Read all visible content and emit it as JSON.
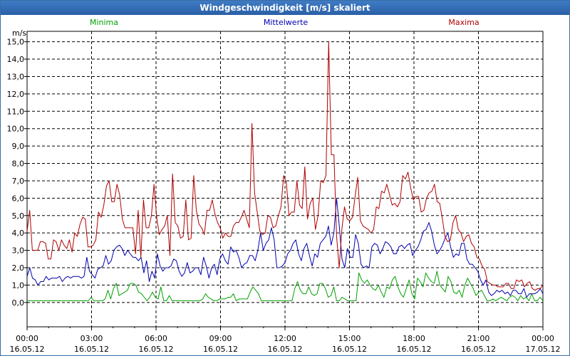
{
  "window": {
    "title": "Windgeschwindigkeit [m/s] skaliert"
  },
  "chart_data": {
    "type": "line",
    "title": "Windgeschwindigkeit [m/s] skaliert",
    "ylabel": "m/s",
    "ylim": [
      -1.4,
      15.6
    ],
    "xlim": [
      0,
      24
    ],
    "grid": true,
    "legend_position": "top",
    "y_ticks": [
      "0,0",
      "1,0",
      "2,0",
      "3,0",
      "4,0",
      "5,0",
      "6,0",
      "7,0",
      "8,0",
      "9,0",
      "10,0",
      "11,0",
      "12,0",
      "13,0",
      "14,0",
      "15,0"
    ],
    "x_tick_times": [
      "00:00",
      "03:00",
      "06:00",
      "09:00",
      "12:00",
      "15:00",
      "18:00",
      "21:00",
      "00:00"
    ],
    "x_tick_dates": [
      "16.05.12",
      "16.05.12",
      "16.05.12",
      "16.05.12",
      "16.05.12",
      "16.05.12",
      "16.05.12",
      "16.05.12",
      "17.05.12"
    ],
    "series": [
      {
        "name": "Minima",
        "color": "#00a000",
        "values": [
          0.1,
          0.1,
          0.1,
          0.1,
          0.1,
          0.1,
          0.1,
          0.1,
          0.1,
          0.1,
          0.1,
          0.1,
          0.1,
          0.1,
          0.1,
          0.1,
          0.1,
          0.1,
          0.1,
          0.1,
          0.1,
          0.1,
          0.1,
          0.3,
          0.1,
          0.1,
          0.1,
          0.1,
          0.2,
          0.7,
          0.2,
          0.8,
          1.1,
          0.4,
          0.5,
          0.6,
          0.7,
          1.1,
          1.1,
          1.0,
          0.6,
          0.5,
          0.3,
          0.1,
          0.3,
          0.6,
          0.3,
          0.2,
          0.9,
          0.1,
          0.1,
          0.4,
          0.1,
          0.1,
          0.1,
          0.1,
          0.1,
          0.1,
          0.1,
          0.1,
          0.1,
          0.1,
          0.1,
          0.2,
          0.5,
          0.3,
          0.2,
          0.1,
          0.1,
          0.2,
          0.2,
          0.2,
          0.3,
          0.3,
          0.5,
          0.1,
          0.2,
          0.2,
          0.2,
          0.2,
          0.6,
          0.9,
          0.7,
          0.5,
          0.1,
          0.1,
          0.1,
          0.1,
          0.1,
          0.1,
          0.1,
          0.1,
          0.1,
          0.1,
          0.1,
          0.1,
          0.8,
          1.2,
          0.7,
          0.5,
          0.5,
          0.9,
          0.5,
          0.4,
          0.5,
          1.1,
          1.1,
          0.8,
          0.3,
          0.4,
          0.9,
          0.1,
          0.1,
          0.3,
          0.2,
          0.1,
          0.1,
          0.1,
          0.1,
          1.7,
          1.3,
          1.1,
          1.3,
          1.0,
          0.8,
          0.7,
          1.0,
          0.6,
          0.3,
          0.9,
          0.8,
          1.3,
          1.5,
          0.9,
          0.5,
          0.3,
          0.8,
          1.3,
          0.5,
          0.2,
          1.4,
          1.2,
          0.9,
          1.7,
          1.4,
          1.2,
          1.1,
          1.8,
          1.0,
          0.8,
          0.6,
          1.5,
          1.2,
          0.6,
          0.5,
          0.7,
          0.3,
          1.0,
          1.4,
          1.1,
          0.8,
          0.4,
          0.6,
          0.7,
          0.4,
          0.1,
          0.1,
          0.2,
          0.1,
          0.2,
          0.3,
          0.2,
          0.1,
          0.3,
          0.4,
          0.3,
          0.1,
          0.4,
          0.2,
          0.3,
          0.1,
          0.5,
          0.1,
          0.1,
          0.3,
          0.1
        ]
      },
      {
        "name": "Mittelwerte",
        "color": "#0000b0",
        "values": [
          1.5,
          2.0,
          1.4,
          1.3,
          1.0,
          1.2,
          1.2,
          1.5,
          1.3,
          1.4,
          1.4,
          1.4,
          1.5,
          1.2,
          1.4,
          1.5,
          1.4,
          1.5,
          1.5,
          1.5,
          1.4,
          1.5,
          2.6,
          1.8,
          1.6,
          1.4,
          1.9,
          2.0,
          2.1,
          2.7,
          2.2,
          2.4,
          3.0,
          3.2,
          3.3,
          3.1,
          2.7,
          3.0,
          2.8,
          2.6,
          2.6,
          2.4,
          2.6,
          1.7,
          2.4,
          1.2,
          1.8,
          1.4,
          2.8,
          2.1,
          1.8,
          2.0,
          2.0,
          2.1,
          2.5,
          2.4,
          1.8,
          1.5,
          1.7,
          2.3,
          1.7,
          1.8,
          2.0,
          2.0,
          1.6,
          2.6,
          2.1,
          1.4,
          2.0,
          2.2,
          1.6,
          2.5,
          2.8,
          2.4,
          2.2,
          3.2,
          2.9,
          3.0,
          2.6,
          2.0,
          2.2,
          2.3,
          2.7,
          2.7,
          2.4,
          3.0,
          4.0,
          3.0,
          3.4,
          3.6,
          4.3,
          3.6,
          2.0,
          2.0,
          2.1,
          2.3,
          2.8,
          3.0,
          3.4,
          3.6,
          2.8,
          2.4,
          3.1,
          3.4,
          2.7,
          2.1,
          2.8,
          2.6,
          3.4,
          3.6,
          3.8,
          4.4,
          3.3,
          4.0,
          6.0,
          4.4,
          2.5,
          2.0,
          3.1,
          2.6,
          2.6,
          3.9,
          3.4,
          2.2,
          2.0,
          2.1,
          2.0,
          3.2,
          3.4,
          3.3,
          2.8,
          3.1,
          3.5,
          3.4,
          3.2,
          2.8,
          2.8,
          3.2,
          3.3,
          3.1,
          3.3,
          3.4,
          2.7,
          3.0,
          3.2,
          3.6,
          4.1,
          4.2,
          4.6,
          4.1,
          3.3,
          2.8,
          3.0,
          3.3,
          3.7,
          4.0,
          3.2,
          2.6,
          2.8,
          2.7,
          3.4,
          3.4,
          2.5,
          2.2,
          2.2,
          2.0,
          1.8,
          1.3,
          1.0,
          1.3,
          0.6,
          0.4,
          0.5,
          0.7,
          0.6,
          0.7,
          0.5,
          0.6,
          0.4,
          0.7,
          0.7,
          0.5,
          0.5,
          0.8,
          0.3,
          0.5,
          0.5,
          0.5,
          0.6,
          0.8,
          0.5
        ]
      },
      {
        "name": "Maxima",
        "color": "#b00000",
        "values": [
          4.1,
          5.3,
          3.0,
          3.0,
          3.0,
          3.5,
          3.5,
          3.4,
          2.5,
          2.5,
          3.6,
          3.5,
          3.0,
          3.6,
          3.3,
          3.1,
          3.6,
          2.9,
          4.0,
          3.8,
          4.5,
          4.9,
          4.8,
          3.2,
          3.2,
          3.3,
          3.6,
          5.2,
          4.9,
          5.6,
          6.7,
          7.0,
          5.8,
          5.8,
          6.8,
          6.2,
          4.8,
          4.3,
          4.3,
          4.3,
          4.3,
          2.8,
          5.3,
          2.6,
          5.9,
          4.3,
          4.3,
          5.0,
          6.8,
          4.9,
          3.9,
          4.2,
          4.4,
          5.0,
          2.7,
          7.4,
          4.6,
          4.4,
          3.7,
          3.8,
          5.9,
          3.6,
          3.7,
          7.3,
          5.3,
          4.5,
          4.3,
          3.9,
          5.3,
          5.3,
          5.9,
          5.1,
          4.6,
          4.3,
          3.7,
          4.0,
          3.8,
          3.8,
          4.4,
          4.6,
          4.6,
          4.9,
          5.3,
          4.8,
          4.3,
          10.3,
          6.3,
          5.2,
          4.1,
          3.9,
          4.0,
          5.0,
          4.9,
          4.3,
          4.4,
          5.0,
          5.5,
          7.3,
          6.9,
          5.0,
          5.2,
          5.2,
          7.0,
          5.6,
          5.4,
          7.8,
          4.8,
          5.7,
          6.0,
          4.2,
          5.0,
          7.0,
          6.9,
          7.3,
          15.0,
          8.5,
          8.5,
          3.8,
          2.0,
          4.2,
          5.5,
          4.8,
          4.7,
          4.9,
          6.1,
          7.2,
          4.7,
          4.4,
          4.3,
          4.2,
          4.0,
          4.2,
          5.5,
          5.4,
          6.4,
          6.3,
          6.8,
          6.2,
          5.6,
          5.7,
          5.5,
          5.8,
          7.3,
          7.1,
          7.5,
          6.6,
          5.9,
          6.1,
          6.1,
          5.2,
          5.3,
          6.0,
          6.3,
          6.4,
          6.8,
          5.8,
          5.7,
          4.8,
          3.8,
          3.5,
          3.6,
          4.6,
          5.0,
          4.2,
          4.0,
          3.5,
          3.8,
          3.9,
          3.4,
          3.2,
          2.6,
          2.5,
          2.1,
          1.9,
          1.2,
          1.1,
          1.0,
          1.0,
          0.9,
          0.9,
          0.9,
          1.1,
          1.1,
          0.8,
          0.8,
          1.3,
          1.2,
          1.3,
          0.9,
          1.1,
          1.2,
          0.8,
          0.7,
          0.8,
          0.8,
          1.0
        ]
      }
    ]
  }
}
